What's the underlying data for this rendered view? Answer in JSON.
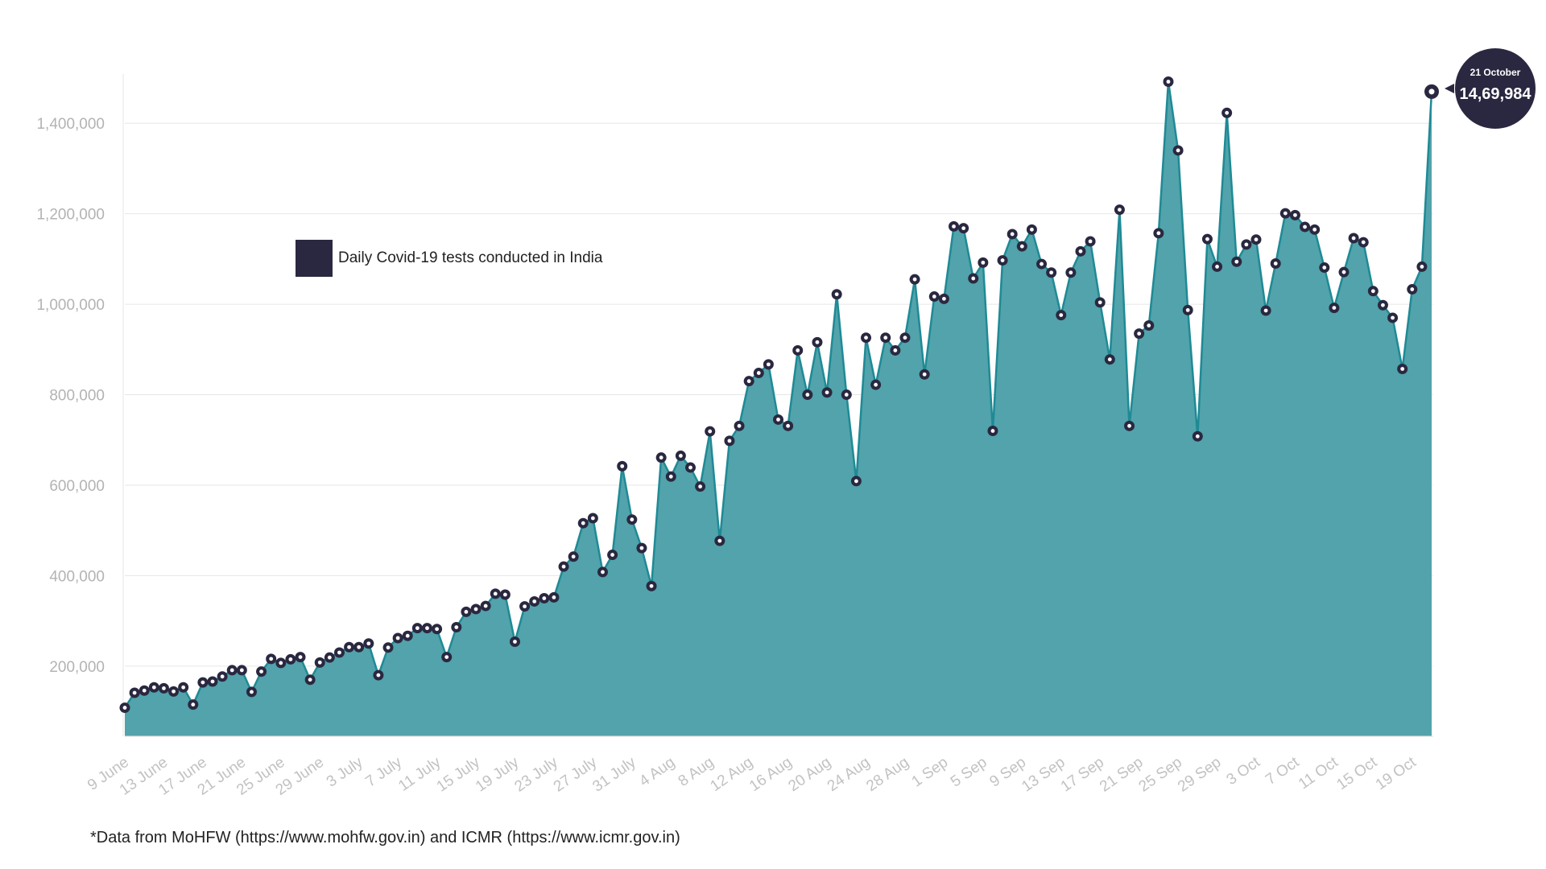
{
  "chart_data": {
    "type": "area",
    "legend": "Daily Covid-19 tests conducted in India",
    "colors": {
      "area": "#52a3ab",
      "line": "#1f8a95",
      "marker": "#2a2840",
      "legend_swatch": "#2a2840"
    },
    "ylim": [
      45000,
      1500000
    ],
    "yticks": [
      200000,
      400000,
      600000,
      800000,
      1000000,
      1200000,
      1400000
    ],
    "ytick_labels": [
      "200,000",
      "400,000",
      "600,000",
      "800,000",
      "1,000,000",
      "1,200,000",
      "1,400,000"
    ],
    "xticks": [
      {
        "label": "9 June",
        "index": 0
      },
      {
        "label": "13 June",
        "index": 4
      },
      {
        "label": "17 June",
        "index": 8
      },
      {
        "label": "21 June",
        "index": 12
      },
      {
        "label": "25 June",
        "index": 16
      },
      {
        "label": "29 June",
        "index": 20
      },
      {
        "label": "3 July",
        "index": 24
      },
      {
        "label": "7 July",
        "index": 28
      },
      {
        "label": "11 July",
        "index": 32
      },
      {
        "label": "15 July",
        "index": 36
      },
      {
        "label": "19 July",
        "index": 40
      },
      {
        "label": "23 July",
        "index": 44
      },
      {
        "label": "27 July",
        "index": 48
      },
      {
        "label": "31 July",
        "index": 52
      },
      {
        "label": "4 Aug",
        "index": 56
      },
      {
        "label": "8 Aug",
        "index": 60
      },
      {
        "label": "12 Aug",
        "index": 64
      },
      {
        "label": "16 Aug",
        "index": 68
      },
      {
        "label": "20 Aug",
        "index": 72
      },
      {
        "label": "24 Aug",
        "index": 76
      },
      {
        "label": "28 Aug",
        "index": 80
      },
      {
        "label": "1 Sep",
        "index": 84
      },
      {
        "label": "5 Sep",
        "index": 88
      },
      {
        "label": "9 Sep",
        "index": 92
      },
      {
        "label": "13 Sep",
        "index": 96
      },
      {
        "label": "17 Sep",
        "index": 100
      },
      {
        "label": "21 Sep",
        "index": 104
      },
      {
        "label": "25 Sep",
        "index": 108
      },
      {
        "label": "29 Sep",
        "index": 112
      },
      {
        "label": "3 Oct",
        "index": 116
      },
      {
        "label": "7 Oct",
        "index": 120
      },
      {
        "label": "11 Oct",
        "index": 124
      },
      {
        "label": "15 Oct",
        "index": 128
      },
      {
        "label": "19 Oct",
        "index": 132
      }
    ],
    "values": [
      108000,
      141000,
      146000,
      153000,
      151000,
      144000,
      153000,
      115000,
      164000,
      166000,
      177000,
      191000,
      191000,
      143000,
      188000,
      216000,
      207000,
      215000,
      220000,
      170000,
      208000,
      219000,
      230000,
      242000,
      242000,
      250000,
      180000,
      241000,
      262000,
      267000,
      284000,
      284000,
      282000,
      220000,
      286000,
      320000,
      326000,
      333000,
      360000,
      358000,
      254000,
      332000,
      343000,
      350000,
      352000,
      420000,
      442000,
      516000,
      527000,
      408000,
      446000,
      642000,
      524000,
      461000,
      377000,
      661000,
      619000,
      665000,
      639000,
      597000,
      719000,
      477000,
      698000,
      731000,
      830000,
      848000,
      867000,
      745000,
      731000,
      898000,
      800000,
      916000,
      805000,
      1022000,
      800000,
      609000,
      926000,
      822000,
      926000,
      898000,
      926000,
      1055000,
      845000,
      1017000,
      1012000,
      1172000,
      1168000,
      1057000,
      1092000,
      720000,
      1097000,
      1155000,
      1128000,
      1165000,
      1089000,
      1070000,
      976000,
      1070000,
      1117000,
      1139000,
      1004000,
      878000,
      1209000,
      731000,
      935000,
      953000,
      1157000,
      1492000,
      1340000,
      987000,
      708000,
      1144000,
      1083000,
      1423000,
      1094000,
      1132000,
      1143000,
      986000,
      1090000,
      1201000,
      1197000,
      1171000,
      1165000,
      1081000,
      992000,
      1071000,
      1146000,
      1137000,
      1029000,
      998000,
      970000,
      857000,
      1033000,
      1083000,
      1469984
    ],
    "callout": {
      "date": "21 October",
      "value": "14,69,984"
    }
  },
  "source_note": "*Data from MoHFW (https://www.mohfw.gov.in) and ICMR (https://www.icmr.gov.in)"
}
